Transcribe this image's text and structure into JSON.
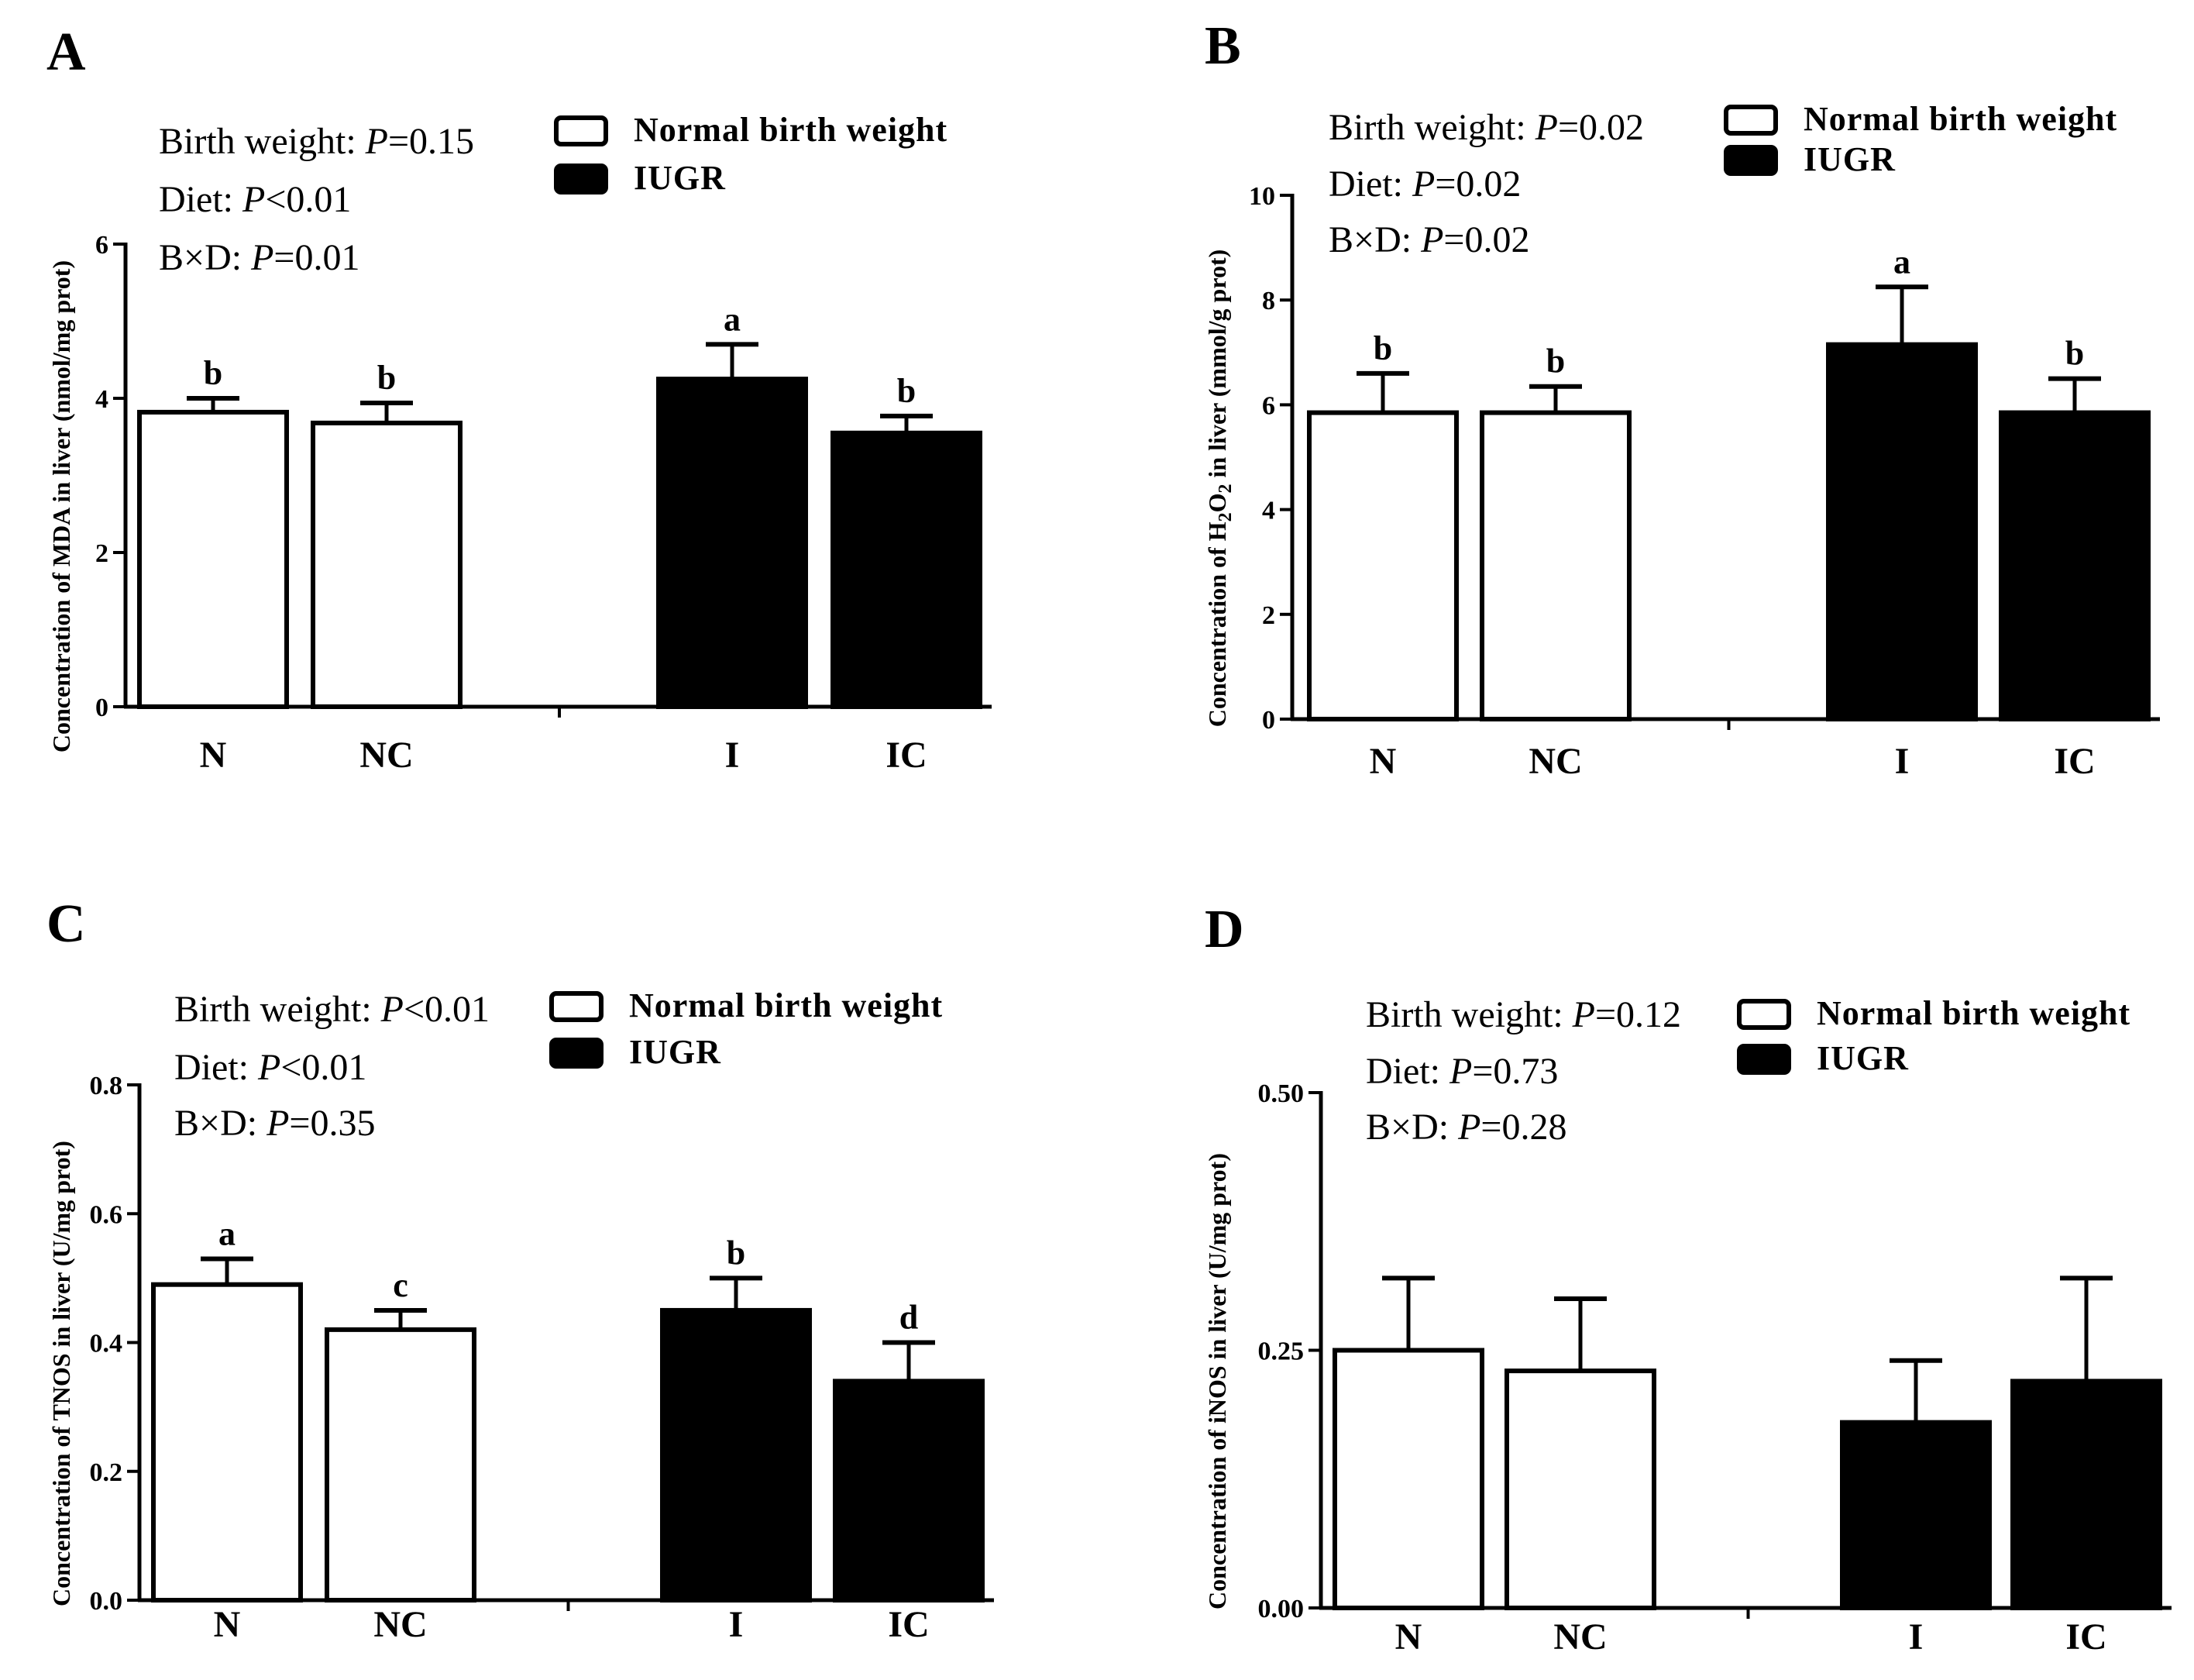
{
  "groups": {
    "normal_label": "Normal birth weight",
    "iugr_label": "IUGR",
    "normal_color": "#ffffff",
    "iugr_color": "#000000"
  },
  "chart_data": [
    {
      "panel": "A",
      "type": "bar",
      "categories": [
        "N",
        "NC",
        "I",
        "IC"
      ],
      "values": [
        3.82,
        3.68,
        4.25,
        3.55
      ],
      "errors": [
        0.18,
        0.26,
        0.45,
        0.22
      ],
      "letters": [
        "b",
        "b",
        "a",
        "b"
      ],
      "fills": [
        "normal",
        "normal",
        "iugr",
        "iugr"
      ],
      "ylabel": "Concentration of MDA in liver (nmol/mg prot)",
      "ylim": [
        0,
        6
      ],
      "yticks": [
        "0",
        "2",
        "4",
        "6"
      ],
      "ytick_values": [
        0,
        2,
        4,
        6
      ],
      "stats": [
        {
          "prefix": "Birth weight: ",
          "p": "P",
          "rest": "=0.15"
        },
        {
          "prefix": "Diet: ",
          "p": "P",
          "rest": "<0.01"
        },
        {
          "prefix": "B×D: ",
          "p": "P",
          "rest": "=0.01"
        }
      ]
    },
    {
      "panel": "B",
      "type": "bar",
      "categories": [
        "N",
        "NC",
        "I",
        "IC"
      ],
      "values": [
        5.85,
        5.85,
        7.15,
        5.85
      ],
      "errors": [
        0.75,
        0.5,
        1.1,
        0.65
      ],
      "letters": [
        "b",
        "b",
        "a",
        "b"
      ],
      "fills": [
        "normal",
        "normal",
        "iugr",
        "iugr"
      ],
      "ylabel_parts": [
        "Concentration of H",
        "2",
        "O",
        "2",
        " in liver (mmol/g prot)"
      ],
      "ylim": [
        0,
        10
      ],
      "yticks": [
        "0",
        "2",
        "4",
        "6",
        "8",
        "10"
      ],
      "ytick_values": [
        0,
        2,
        4,
        6,
        8,
        10
      ],
      "stats": [
        {
          "prefix": "Birth weight: ",
          "p": "P",
          "rest": "=0.02"
        },
        {
          "prefix": "Diet: ",
          "p": "P",
          "rest": "=0.02"
        },
        {
          "prefix": "B×D: ",
          "p": "P",
          "rest": "=0.02"
        }
      ]
    },
    {
      "panel": "C",
      "type": "bar",
      "categories": [
        "N",
        "NC",
        "I",
        "IC"
      ],
      "values": [
        0.49,
        0.42,
        0.45,
        0.34
      ],
      "errors": [
        0.04,
        0.03,
        0.05,
        0.06
      ],
      "letters": [
        "a",
        "c",
        "b",
        "d"
      ],
      "fills": [
        "normal",
        "normal",
        "iugr",
        "iugr"
      ],
      "ylabel": "Concentration of TNOS in liver (U/mg prot)",
      "ylim": [
        0,
        0.8
      ],
      "yticks": [
        "0.0",
        "0.2",
        "0.4",
        "0.6",
        "0.8"
      ],
      "ytick_values": [
        0,
        0.2,
        0.4,
        0.6,
        0.8
      ],
      "stats": [
        {
          "prefix": "Birth weight: ",
          "p": "P",
          "rest": "<0.01"
        },
        {
          "prefix": "Diet: ",
          "p": "P",
          "rest": "<0.01"
        },
        {
          "prefix": "B×D: ",
          "p": "P",
          "rest": "=0.35"
        }
      ]
    },
    {
      "panel": "D",
      "type": "bar",
      "categories": [
        "N",
        "NC",
        "I",
        "IC"
      ],
      "values": [
        0.25,
        0.23,
        0.18,
        0.22
      ],
      "errors": [
        0.07,
        0.07,
        0.06,
        0.1
      ],
      "letters": [
        "",
        "",
        "",
        ""
      ],
      "fills": [
        "normal",
        "normal",
        "iugr",
        "iugr"
      ],
      "ylabel": "Concentration of iNOS in liver (U/mg prot)",
      "ylim": [
        0,
        0.5
      ],
      "yticks": [
        "0.00",
        "0.25",
        "0.50"
      ],
      "ytick_values": [
        0,
        0.25,
        0.5
      ],
      "stats": [
        {
          "prefix": "Birth weight: ",
          "p": "P",
          "rest": "=0.12"
        },
        {
          "prefix": "Diet: ",
          "p": "P",
          "rest": "=0.73"
        },
        {
          "prefix": "B×D: ",
          "p": "P",
          "rest": "=0.28"
        }
      ]
    }
  ]
}
